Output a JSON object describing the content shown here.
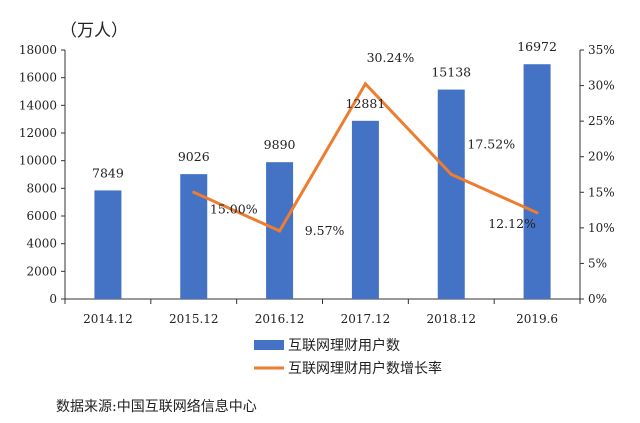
{
  "chart_data": {
    "type": "bar+line",
    "unit_label": "（万人）",
    "categories": [
      "2014.12",
      "2015.12",
      "2016.12",
      "2017.12",
      "2018.12",
      "2019.6"
    ],
    "series": [
      {
        "name": "互联网理财用户数",
        "type": "bar",
        "axis": "left",
        "color": "#4472C4",
        "values": [
          7849,
          9026,
          9890,
          12881,
          15138,
          16972
        ],
        "labels": [
          "7849",
          "9026",
          "9890",
          "12881",
          "15138",
          "16972"
        ]
      },
      {
        "name": "互联网理财用户数增长率",
        "type": "line",
        "axis": "right",
        "color": "#ED7D31",
        "values": [
          null,
          15.0,
          9.57,
          30.24,
          17.52,
          12.12
        ],
        "labels": [
          "",
          "15.00%",
          "9.57%",
          "30.24%",
          "17.52%",
          "12.12%"
        ]
      }
    ],
    "y_left": {
      "range": [
        0,
        18000
      ],
      "ticks": [
        "0",
        "2000",
        "4000",
        "6000",
        "8000",
        "10000",
        "12000",
        "14000",
        "16000",
        "18000"
      ]
    },
    "y_right": {
      "range": [
        0,
        35
      ],
      "ticks": [
        "0%",
        "5%",
        "10%",
        "15%",
        "20%",
        "25%",
        "30%",
        "35%"
      ]
    },
    "grid": false,
    "legend_placement": "bottom",
    "source": "数据来源:中国互联网络信息中心"
  }
}
